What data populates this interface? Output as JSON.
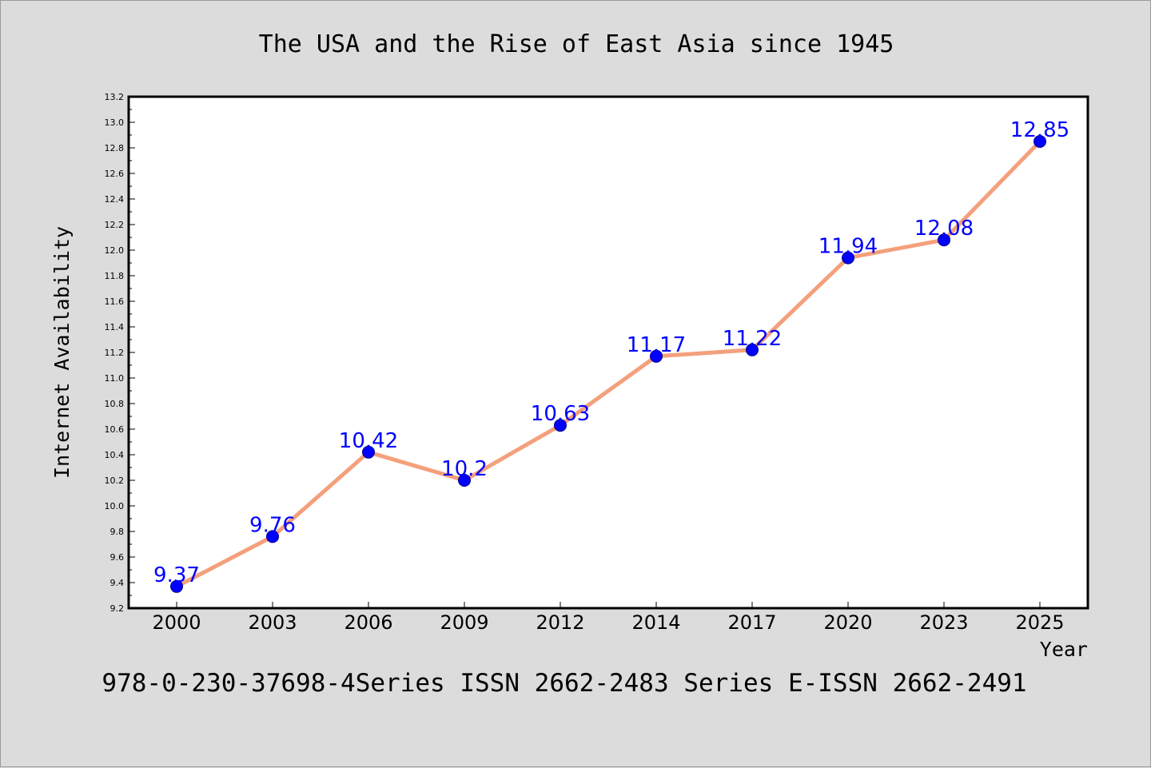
{
  "chart_data": {
    "type": "line",
    "title": "The USA and the Rise of East Asia since 1945",
    "xlabel": "Year",
    "ylabel": "Internet Availability",
    "categories": [
      "2000",
      "2003",
      "2006",
      "2009",
      "2012",
      "2014",
      "2017",
      "2020",
      "2023",
      "2025"
    ],
    "series": [
      {
        "values": [
          9.37,
          9.76,
          10.42,
          10.2,
          10.63,
          11.17,
          11.22,
          11.94,
          12.08,
          12.85
        ],
        "labels": [
          "9.37",
          "9.76",
          "10.42",
          "10.2",
          "10.63",
          "11.17",
          "11.22",
          "11.94",
          "12.08",
          "12.85"
        ]
      }
    ],
    "ylim": [
      9.2,
      13.2
    ],
    "yticks": [
      "9.2",
      "9.4",
      "9.6",
      "9.8",
      "10.0",
      "10.2",
      "10.4",
      "10.6",
      "10.8",
      "11.0",
      "11.2",
      "11.4",
      "11.6",
      "11.8",
      "12.0",
      "12.2",
      "12.4",
      "12.6",
      "12.8",
      "13.0",
      "13.2"
    ],
    "grid": false,
    "colors": {
      "line": "#f4a07c",
      "marker": "#0000ff",
      "data_label": "#0000ff",
      "background": "#dcdcdc"
    }
  },
  "footer": "978-0-230-37698-4Series ISSN 2662-2483 Series E-ISSN 2662-2491"
}
